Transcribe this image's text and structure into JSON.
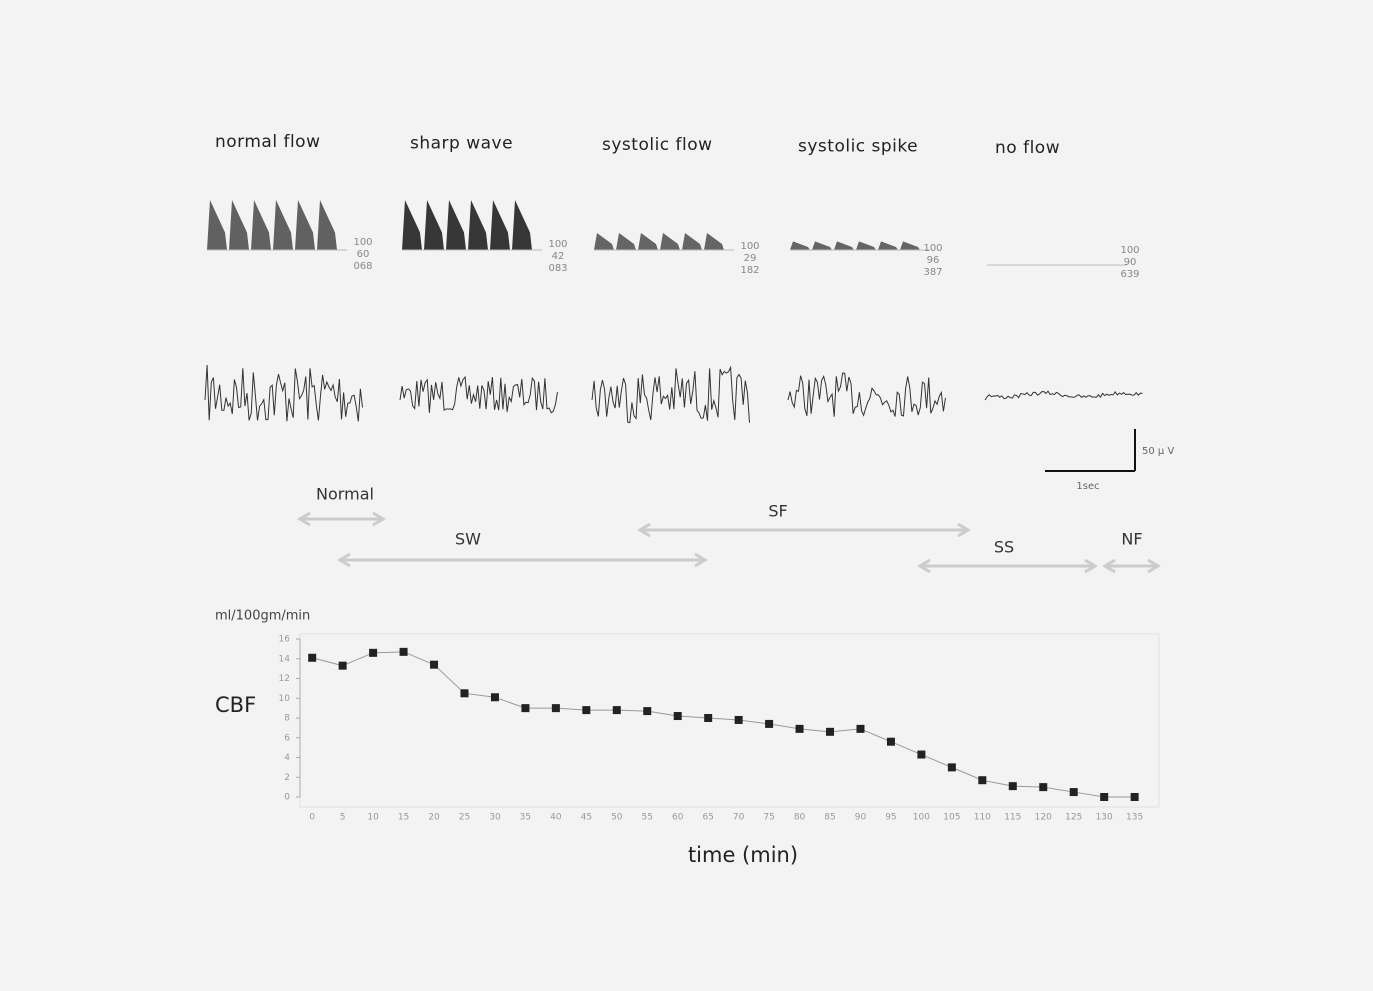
{
  "panels": [
    {
      "label": "normal flow",
      "readings": [
        "100",
        "60",
        "068"
      ]
    },
    {
      "label": "sharp wave",
      "readings": [
        "100",
        "42",
        "083"
      ]
    },
    {
      "label": "systolic flow",
      "readings": [
        "100",
        "29",
        "182"
      ]
    },
    {
      "label": "systolic spike",
      "readings": [
        "100",
        "96",
        "387"
      ]
    },
    {
      "label": "no flow",
      "readings": [
        "100",
        "90",
        "639"
      ]
    }
  ],
  "scale_bar": {
    "amplitude": "50 μ V",
    "time": "1sec"
  },
  "phases": [
    "Normal",
    "SW",
    "SF",
    "SS",
    "NF"
  ],
  "chart_data": {
    "type": "line",
    "y_unit": "ml/100gm/min",
    "ylabel": "CBF",
    "xlabel": "time (min)",
    "x": [
      0,
      5,
      10,
      15,
      20,
      25,
      30,
      35,
      40,
      45,
      50,
      55,
      60,
      65,
      70,
      75,
      80,
      85,
      90,
      95,
      100,
      105,
      110,
      115,
      120,
      125,
      130,
      135
    ],
    "values": [
      14.1,
      13.3,
      14.6,
      14.7,
      13.4,
      10.5,
      10.1,
      9.0,
      9.0,
      8.8,
      8.8,
      8.7,
      8.2,
      8.0,
      7.8,
      7.4,
      6.9,
      6.6,
      6.9,
      5.6,
      4.3,
      3.0,
      1.7,
      1.1,
      1.0,
      0.5,
      0.0,
      0.0
    ],
    "color": "#222",
    "line_color": "#999",
    "xlim": [
      -2,
      139
    ],
    "ylim": [
      0,
      16
    ],
    "xticks": [
      0,
      5,
      10,
      15,
      20,
      25,
      30,
      35,
      40,
      45,
      50,
      55,
      60,
      65,
      70,
      75,
      80,
      85,
      90,
      95,
      100,
      105,
      110,
      115,
      120,
      125,
      130,
      135
    ],
    "yticks": [
      0,
      2,
      4,
      6,
      8,
      10,
      12,
      14,
      16
    ]
  }
}
